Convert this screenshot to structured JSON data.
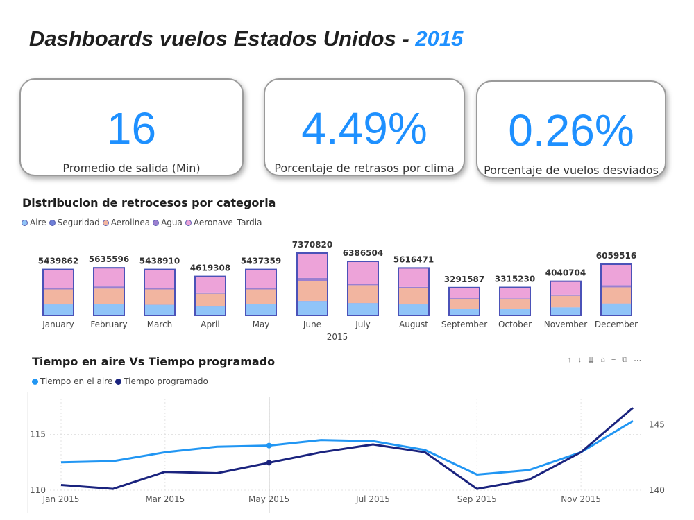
{
  "header": {
    "title_prefix": "Dashboards vuelos Estados Unidos - ",
    "title_year": "2015"
  },
  "cards": [
    {
      "value": "16",
      "label": "Promedio de salida (Min)"
    },
    {
      "value": "4.49%",
      "label": "Porcentaje de retrasos por clima"
    },
    {
      "value": "0.26%",
      "label": "Porcentaje de vuelos desviados"
    }
  ],
  "bar_section": {
    "title": "Distribucion de retrocesos por categoria",
    "legend": [
      {
        "name": "Aire",
        "color": "#90c4f8"
      },
      {
        "name": "Seguridad",
        "color": "#6f80d8"
      },
      {
        "name": "Aerolinea",
        "color": "#f2b5a0"
      },
      {
        "name": "Agua",
        "color": "#9b7fd0"
      },
      {
        "name": "Aeronave_Tardia",
        "color": "#eda3d9"
      }
    ]
  },
  "line_section": {
    "title": "Tiempo en aire Vs Tiempo programado",
    "legend": [
      {
        "name": "Tiempo en el aire",
        "color": "#2196f3"
      },
      {
        "name": "Tiempo programado",
        "color": "#1a237e"
      }
    ],
    "toolbar_icons": [
      "arrow-up-icon",
      "arrow-down-icon",
      "drill-down-icon",
      "expand-icon",
      "filter-icon",
      "focus-mode-icon",
      "more-options-icon"
    ]
  },
  "chart_data": [
    {
      "type": "bar",
      "title": "Distribucion de retrocesos por categoria",
      "xlabel": "2015",
      "categories": [
        "January",
        "February",
        "March",
        "April",
        "May",
        "June",
        "July",
        "August",
        "September",
        "October",
        "November",
        "December"
      ],
      "totals": [
        5439862,
        5635596,
        5438910,
        4619308,
        5437359,
        7370820,
        6386504,
        5616471,
        3291587,
        3315230,
        4040704,
        6059516
      ],
      "series": [
        {
          "name": "Aire",
          "values": [
            1300000,
            1350000,
            1250000,
            1050000,
            1350000,
            1700000,
            1450000,
            1300000,
            800000,
            750000,
            950000,
            1400000
          ]
        },
        {
          "name": "Seguridad",
          "values": [
            20000,
            20000,
            20000,
            15000,
            20000,
            25000,
            20000,
            20000,
            12000,
            12000,
            15000,
            20000
          ]
        },
        {
          "name": "Aerolinea",
          "values": [
            1750000,
            1800000,
            1800000,
            1500000,
            1700000,
            2350000,
            2100000,
            1950000,
            1150000,
            1200000,
            1350000,
            1900000
          ]
        },
        {
          "name": "Agua",
          "values": [
            200000,
            260000,
            150000,
            150000,
            200000,
            350000,
            150000,
            100000,
            80000,
            60000,
            150000,
            250000
          ]
        },
        {
          "name": "Aeronave_Tardia",
          "values": [
            2169862,
            2205596,
            2218910,
            1904308,
            2167359,
            2945820,
            2666504,
            2246471,
            1249587,
            1293230,
            1575704,
            2489516
          ]
        }
      ]
    },
    {
      "type": "line",
      "title": "Tiempo en aire Vs Tiempo programado",
      "x": [
        "Jan 2015",
        "Feb 2015",
        "Mar 2015",
        "Apr 2015",
        "May 2015",
        "Jun 2015",
        "Jul 2015",
        "Aug 2015",
        "Sep 2015",
        "Oct 2015",
        "Nov 2015",
        "Dec 2015"
      ],
      "x_tick_labels": [
        "Jan 2015",
        "Mar 2015",
        "May 2015",
        "Jul 2015",
        "Sep 2015",
        "Nov 2015"
      ],
      "series": [
        {
          "name": "Tiempo en el aire",
          "axis": "left",
          "values": [
            112.5,
            112.6,
            113.4,
            113.9,
            114.0,
            114.5,
            114.4,
            113.6,
            111.4,
            111.8,
            113.4,
            116.2
          ]
        },
        {
          "name": "Tiempo programado",
          "axis": "right",
          "values": [
            140.4,
            140.1,
            141.4,
            141.3,
            142.1,
            142.9,
            143.5,
            142.9,
            140.1,
            140.8,
            142.9,
            146.3
          ]
        }
      ],
      "y_left": {
        "ticks": [
          110,
          115
        ],
        "range": [
          110,
          118.2
        ]
      },
      "y_right": {
        "ticks": [
          140,
          145
        ],
        "range": [
          140,
          147
        ]
      },
      "highlight": "May 2015"
    }
  ]
}
